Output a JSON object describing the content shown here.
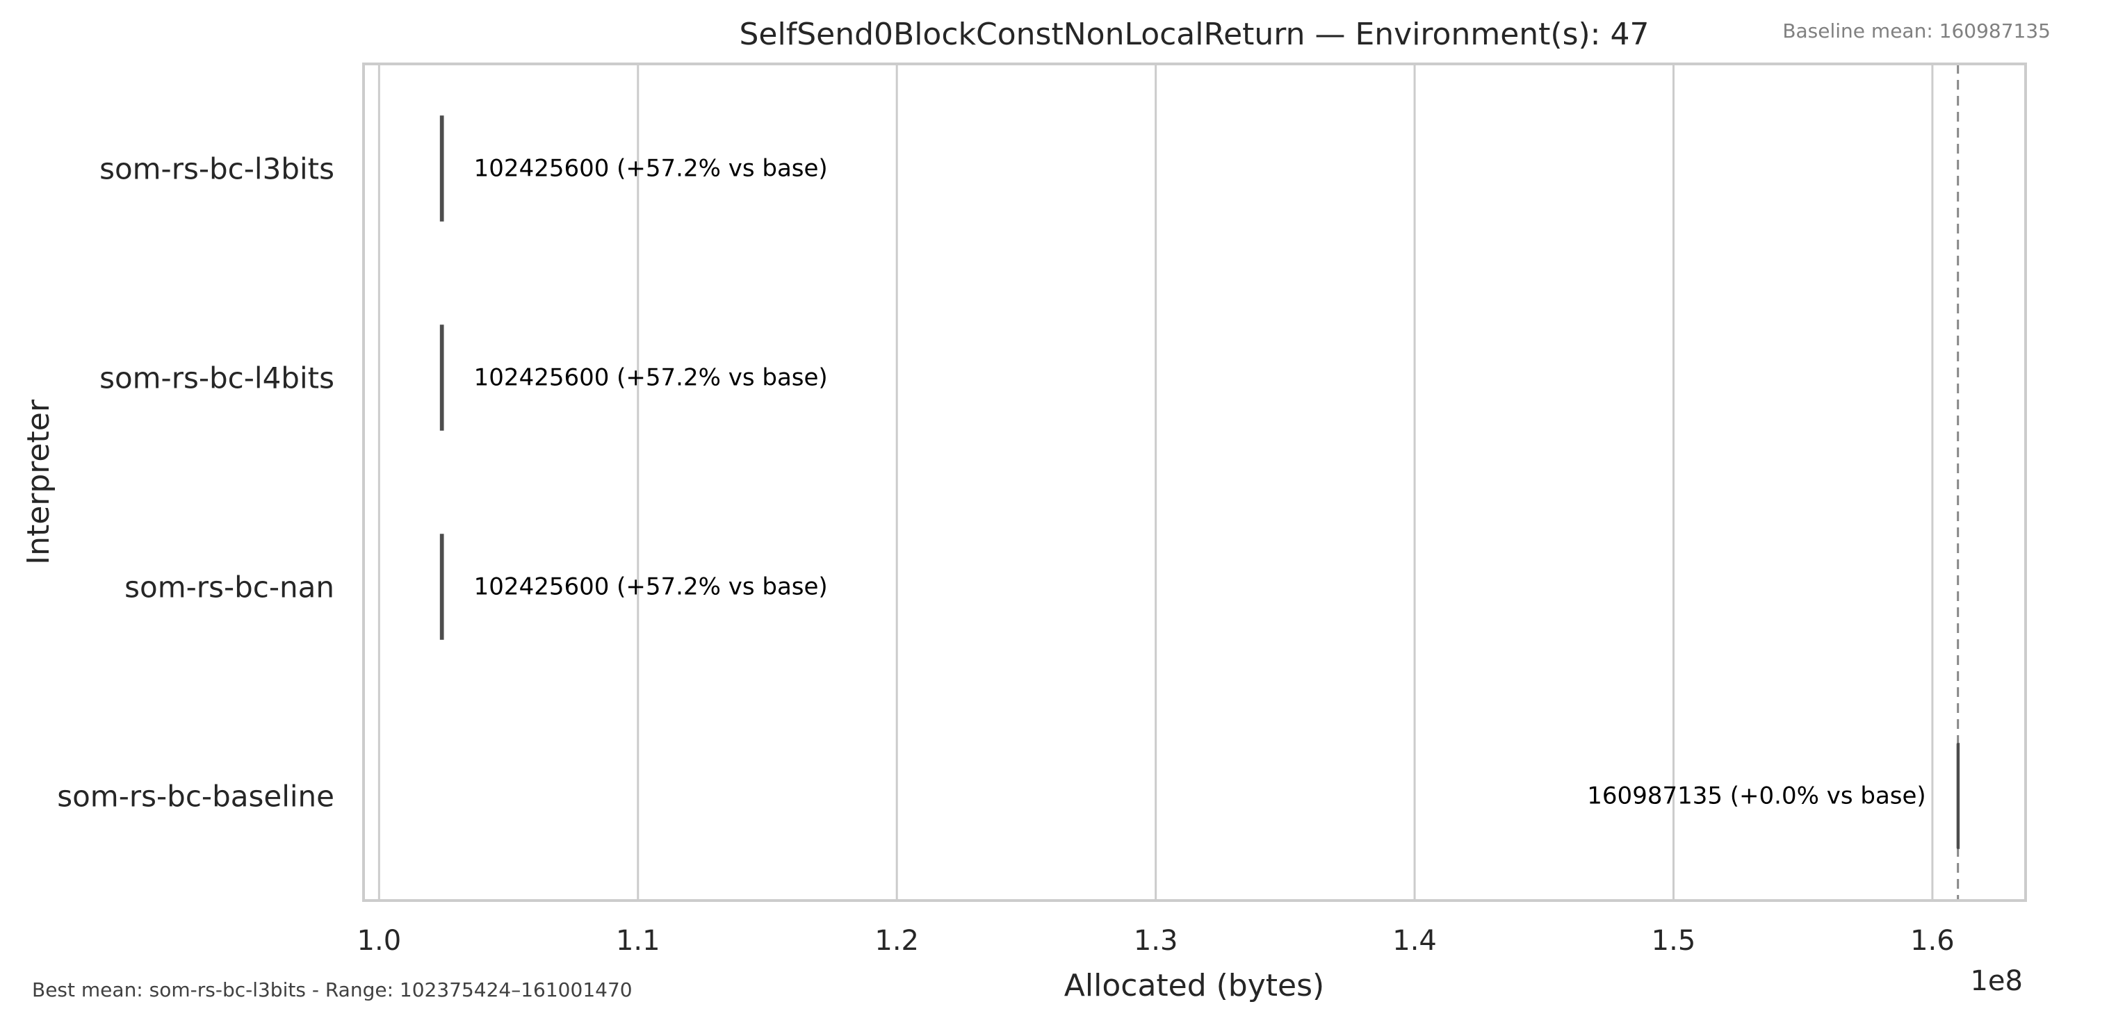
{
  "chart_data": {
    "type": "box",
    "title": "SelfSend0BlockConstNonLocalReturn — Environment(s): 47",
    "xlabel": "Allocated (bytes)",
    "ylabel": "Interpreter",
    "x_scale_label": "1e8",
    "xlim": [
      0.994,
      1.636
    ],
    "x_ticks": [
      "1.0",
      "1.1",
      "1.2",
      "1.3",
      "1.4",
      "1.5",
      "1.6"
    ],
    "x_tick_values": [
      1.0,
      1.1,
      1.2,
      1.3,
      1.4,
      1.5,
      1.6
    ],
    "orientation": "horizontal",
    "grid": "vertical",
    "categories": [
      "som-rs-bc-l3bits",
      "som-rs-bc-l4bits",
      "som-rs-bc-nan",
      "som-rs-bc-baseline"
    ],
    "series": [
      {
        "values": [
          1.024256,
          1.024256,
          1.024256,
          1.60987135
        ],
        "whisker_low": [
          1.02375424,
          1.02375424,
          1.02375424,
          1.609728
        ],
        "whisker_high": [
          1.02475776,
          1.02475776,
          1.02475776,
          1.6100147
        ]
      }
    ],
    "data_labels": [
      "102425600  (+57.2% vs base)",
      "102425600  (+57.2% vs base)",
      "102425600  (+57.2% vs base)",
      "160987135  (+0.0% vs base)"
    ],
    "baseline_value": 1.60987135,
    "baseline_note": "Baseline mean: 160987135",
    "footer_note": "Best mean: som-rs-bc-l3bits - Range: 102375424–161001470",
    "colors": {
      "grid": "#cccccc",
      "frame": "#cccccc",
      "box": "#4d4d4d",
      "baseline_line": "#888888",
      "text": "#262626",
      "label_text": "#000000",
      "note_text": "#808080",
      "footer_text": "#404040"
    }
  }
}
